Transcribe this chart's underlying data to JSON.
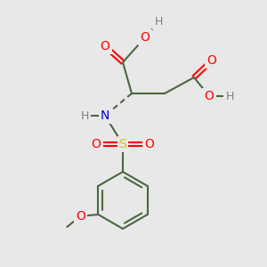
{
  "bg_color": "#e8e8e8",
  "bond_color": "#4a6741",
  "bond_width": 1.5,
  "atom_colors": {
    "O": "#ff0000",
    "N": "#0000cc",
    "S": "#cccc00",
    "H": "#808080",
    "C": "#4a6741"
  },
  "font_size": 8,
  "figsize": [
    3.0,
    3.0
  ],
  "dpi": 100
}
